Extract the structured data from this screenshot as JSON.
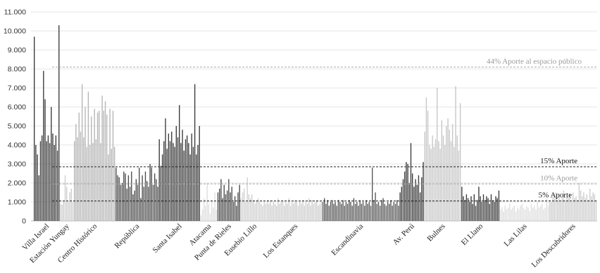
{
  "chart_data": {
    "type": "bar",
    "ylim": [
      0,
      11000
    ],
    "y_ticks": [
      {
        "value": 0,
        "label": "0"
      },
      {
        "value": 1000,
        "label": "1.000"
      },
      {
        "value": 2000,
        "label": "2.000"
      },
      {
        "value": 3000,
        "label": "3.000"
      },
      {
        "value": 4000,
        "label": "4.000"
      },
      {
        "value": 5000,
        "label": "5.000"
      },
      {
        "value": 6000,
        "label": "6.000"
      },
      {
        "value": 7000,
        "label": "7.000"
      },
      {
        "value": 8000,
        "label": "8.000"
      },
      {
        "value": 9000,
        "label": "9.000"
      },
      {
        "value": 10000,
        "label": "10.000"
      },
      {
        "value": 11000,
        "label": "11.000"
      }
    ],
    "grid": true,
    "reference_lines": [
      {
        "value": 8100,
        "label": "44% Aporte al espacio público",
        "color": "#aaaaaa"
      },
      {
        "value": 2850,
        "label": "15% Aporte",
        "color": "#222222"
      },
      {
        "value": 1950,
        "label": "10% Aporte",
        "color": "#aaaaaa"
      },
      {
        "value": 1050,
        "label": "5% Aporte",
        "color": "#222222"
      }
    ],
    "series": [
      {
        "category": "Villa Israel",
        "color": "#3a3a3a",
        "values": [
          9700,
          4000,
          3500,
          2400,
          4200,
          4500,
          7900,
          6400,
          4200,
          4500,
          4100,
          6000,
          4600,
          4000,
          4500,
          3700,
          10300
        ]
      },
      {
        "category": "Estación Yungay",
        "color": "#cccccc",
        "values": [
          900,
          850,
          1000,
          2400,
          1800,
          1000,
          1500,
          1700,
          1000
        ]
      },
      {
        "category": "Centro Histórico",
        "color": "#b5b5b5",
        "values": [
          4200,
          5100,
          4400,
          5700,
          4700,
          7200,
          4400,
          6000,
          3900,
          6800,
          4000,
          5500,
          4100,
          5900,
          4300,
          5700,
          5800,
          4100,
          6600,
          5800,
          6300,
          5600,
          3500,
          5900,
          3800,
          5800,
          3900
        ]
      },
      {
        "category": "República",
        "color": "#4a4a4a",
        "values": [
          2800,
          2400,
          2300,
          1900,
          2000,
          2600,
          2500,
          1700,
          2400,
          1800,
          2600,
          1400,
          1600,
          2200,
          1900,
          2800,
          1200,
          2400,
          1800,
          2600,
          2100,
          1800,
          3000,
          2800,
          1900,
          2500,
          2200,
          1800
        ]
      },
      {
        "category": "Santa Isabel",
        "color": "#3a3a3a",
        "values": [
          4300,
          2900,
          3500,
          4200,
          5400,
          3800,
          4600,
          4200,
          4700,
          4100,
          3900,
          5000,
          4400,
          6100,
          4100,
          4800,
          3700,
          4300,
          4500,
          4100,
          3500,
          4600,
          3900,
          7200,
          3500,
          4000,
          5000
        ]
      },
      {
        "category": "Atacama",
        "color": "#dddddd",
        "values": [
          300,
          600,
          1200,
          800,
          2000,
          900,
          400,
          1100,
          700,
          1500,
          600
        ]
      },
      {
        "category": "Punta de Rieles",
        "color": "#4a4a4a",
        "values": [
          1500,
          1700,
          2200,
          1200,
          1900,
          1400,
          1600,
          2200,
          1500,
          1800,
          1000,
          1300,
          800,
          1500,
          1900
        ]
      },
      {
        "category": "Eusebio Lillo",
        "color": "#cfcfcf",
        "values": [
          1200,
          1500,
          1700,
          1000,
          2300,
          1400,
          1200,
          1400,
          1100,
          900,
          1100,
          1200,
          1000,
          900,
          800,
          1000,
          900,
          1100
        ]
      },
      {
        "category": "Los Estanques",
        "color": "#cccccc",
        "values": [
          900,
          1100,
          800,
          1000,
          900,
          800,
          1200,
          900,
          1000,
          1100,
          800,
          1000,
          900,
          1200,
          800,
          1000,
          900,
          1100,
          1000,
          800,
          1000,
          900,
          1100,
          800,
          1000,
          900,
          1200,
          800,
          1100,
          900,
          1000,
          1100,
          800,
          900,
          1000
        ]
      },
      {
        "category": "Escandinavia",
        "color": "#555555",
        "values": [
          1000,
          1200,
          900,
          1100,
          800,
          1000,
          1100,
          900,
          1000,
          800,
          1100,
          1000,
          900,
          1100,
          800,
          1000,
          900,
          1100,
          1000,
          800,
          1200,
          900,
          1000,
          800,
          1100,
          900,
          1000,
          800,
          1100,
          900,
          1000,
          800,
          2800,
          1100,
          1500,
          900,
          1000,
          800,
          1100,
          1200,
          900,
          800,
          1000,
          900,
          1100,
          800,
          1000,
          900,
          1100,
          800
        ]
      },
      {
        "category": "Av. Perú",
        "color": "#3a3a3a",
        "values": [
          1500,
          1800,
          2200,
          2600,
          3100,
          3000,
          2000,
          4100,
          2500,
          1800,
          2200,
          1900,
          2400,
          1500,
          2300,
          3100
        ]
      },
      {
        "category": "Bulnes",
        "color": "#c6c6c6",
        "values": [
          4700,
          6500,
          5800,
          4000,
          3800,
          4500,
          3900,
          4300,
          7000,
          4200,
          3800,
          5300,
          4500,
          4000,
          5000,
          5400,
          4800,
          4200,
          5100,
          3900,
          7100,
          4500,
          3700,
          6200
        ]
      },
      {
        "category": "El Llano",
        "color": "#3a3a3a",
        "values": [
          1800,
          1300,
          1100,
          1400,
          1200,
          1000,
          1300,
          900,
          1400,
          800,
          1100,
          1800,
          1300,
          1000,
          1400,
          1100,
          1300,
          1200,
          900,
          1400,
          1100,
          1000,
          1300,
          1200,
          1600
        ]
      },
      {
        "category": "Las Lilas",
        "color": "#dddddd",
        "values": [
          600,
          700,
          500,
          800,
          600,
          700,
          900,
          600,
          700,
          800,
          500,
          700,
          600,
          800,
          900,
          700,
          600,
          800,
          700,
          500,
          900,
          700,
          800,
          600,
          1000,
          700,
          800,
          900,
          600,
          700,
          1200,
          800
        ]
      },
      {
        "category": "Los Descubridores",
        "color": "#cccccc",
        "values": [
          1100,
          1000,
          1300,
          1200,
          1500,
          1100,
          1400,
          1000,
          1200,
          1600,
          1100,
          1300,
          1200,
          1400,
          1000,
          1500,
          1200,
          1300,
          1100,
          2000,
          1600,
          1300,
          1500,
          1200,
          1400,
          1100,
          1700,
          1300,
          1500,
          1400,
          1100
        ]
      }
    ]
  }
}
